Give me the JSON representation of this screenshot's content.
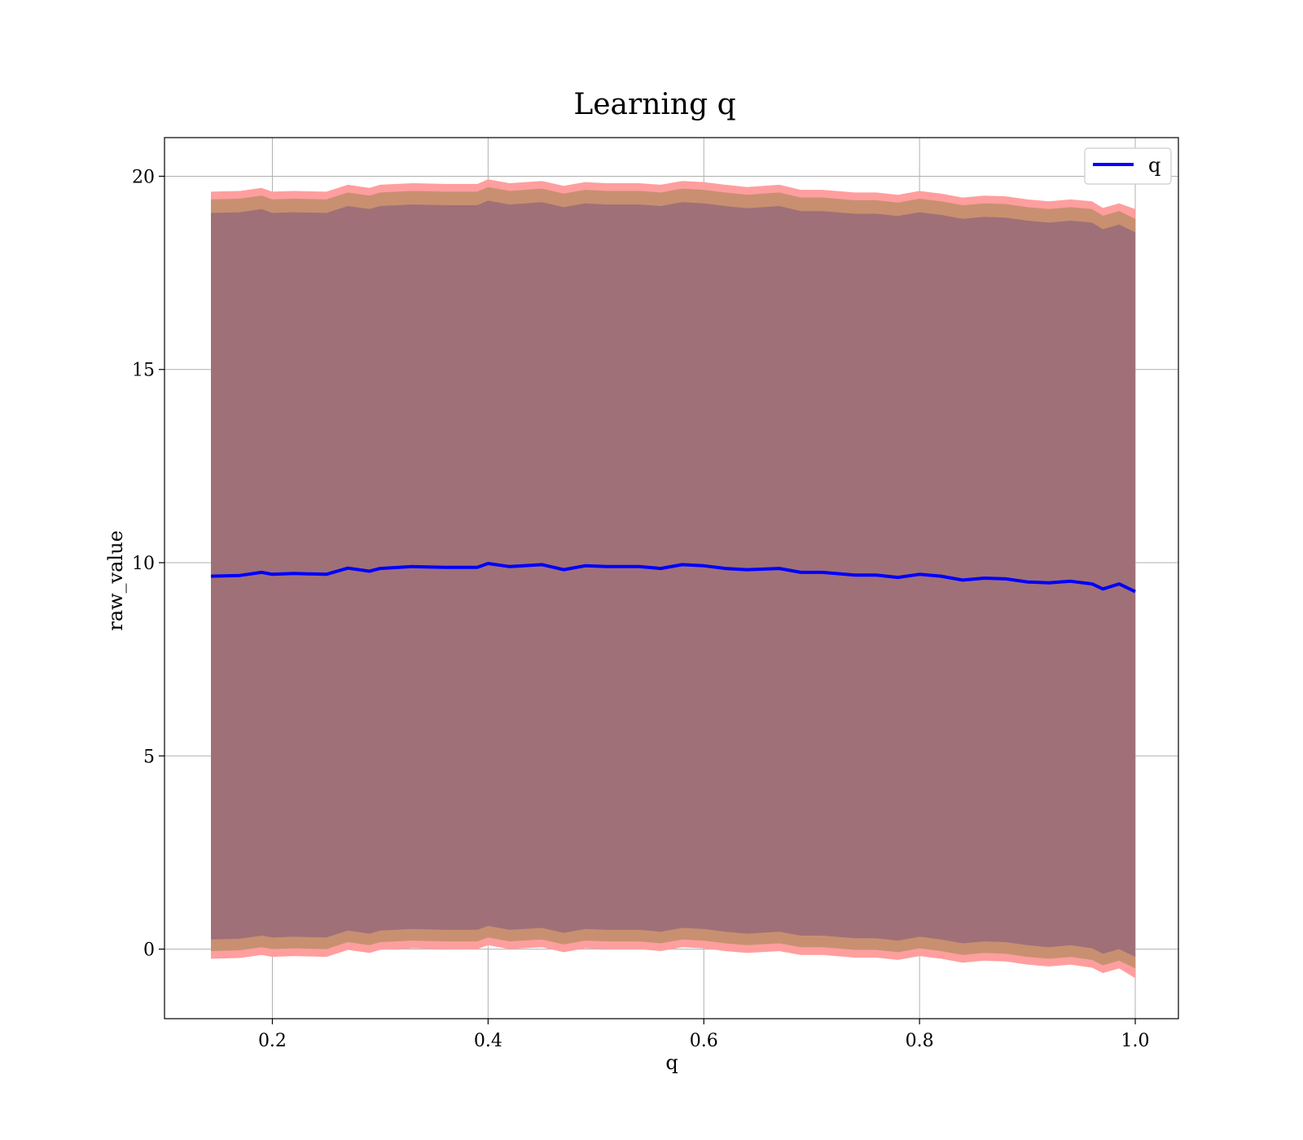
{
  "chart_data": {
    "type": "line",
    "title": "Learning q",
    "xlabel": "q",
    "ylabel": "raw_value",
    "xlim": [
      0.1,
      1.04
    ],
    "ylim": [
      -1.8,
      21.0
    ],
    "xticks": [
      0.2,
      0.4,
      0.6,
      0.8,
      1.0
    ],
    "xtick_labels": [
      "0.2",
      "0.4",
      "0.6",
      "0.8",
      "1.0"
    ],
    "yticks": [
      0,
      5,
      10,
      15,
      20
    ],
    "ytick_labels": [
      "0",
      "5",
      "10",
      "15",
      "20"
    ],
    "grid": true,
    "legend": {
      "position": "top-right",
      "entries": [
        "q"
      ]
    },
    "colors": {
      "line": "#0000ff",
      "band_outer": "#ff9e9e",
      "band_mid": "#c89070",
      "band_inner": "#a07078",
      "grid": "#b0b0b0"
    },
    "series": [
      {
        "name": "q",
        "x": [
          0.143,
          0.17,
          0.19,
          0.2,
          0.22,
          0.25,
          0.27,
          0.29,
          0.3,
          0.33,
          0.36,
          0.39,
          0.4,
          0.42,
          0.45,
          0.47,
          0.49,
          0.51,
          0.54,
          0.56,
          0.58,
          0.6,
          0.62,
          0.64,
          0.67,
          0.69,
          0.71,
          0.74,
          0.76,
          0.78,
          0.8,
          0.82,
          0.84,
          0.86,
          0.88,
          0.9,
          0.92,
          0.94,
          0.96,
          0.97,
          0.985,
          1.0
        ],
        "y": [
          9.65,
          9.67,
          9.75,
          9.7,
          9.72,
          9.7,
          9.86,
          9.78,
          9.85,
          9.9,
          9.88,
          9.88,
          9.98,
          9.9,
          9.95,
          9.82,
          9.92,
          9.9,
          9.9,
          9.85,
          9.95,
          9.92,
          9.85,
          9.82,
          9.85,
          9.75,
          9.75,
          9.68,
          9.68,
          9.62,
          9.7,
          9.65,
          9.55,
          9.6,
          9.58,
          9.5,
          9.48,
          9.52,
          9.45,
          9.32,
          9.45,
          9.25
        ],
        "band_outer_upper": [
          19.6,
          19.62,
          19.7,
          19.6,
          19.62,
          19.6,
          19.78,
          19.7,
          19.78,
          19.82,
          19.8,
          19.8,
          19.92,
          19.82,
          19.88,
          19.75,
          19.85,
          19.82,
          19.82,
          19.78,
          19.88,
          19.85,
          19.78,
          19.72,
          19.78,
          19.65,
          19.65,
          19.58,
          19.58,
          19.52,
          19.62,
          19.55,
          19.45,
          19.5,
          19.48,
          19.4,
          19.35,
          19.4,
          19.35,
          19.18,
          19.3,
          19.15
        ],
        "band_outer_lower": [
          -0.25,
          -0.23,
          -0.15,
          -0.2,
          -0.18,
          -0.2,
          -0.02,
          -0.1,
          -0.02,
          0.02,
          0.0,
          0.0,
          0.1,
          0.0,
          0.05,
          -0.08,
          0.02,
          0.0,
          0.0,
          -0.05,
          0.05,
          0.02,
          -0.05,
          -0.1,
          -0.05,
          -0.15,
          -0.15,
          -0.22,
          -0.22,
          -0.28,
          -0.18,
          -0.25,
          -0.35,
          -0.3,
          -0.32,
          -0.4,
          -0.45,
          -0.4,
          -0.48,
          -0.62,
          -0.5,
          -0.75
        ],
        "band_mid_upper": [
          19.4,
          19.42,
          19.5,
          19.4,
          19.42,
          19.4,
          19.58,
          19.5,
          19.58,
          19.62,
          19.6,
          19.6,
          19.72,
          19.62,
          19.68,
          19.55,
          19.65,
          19.62,
          19.62,
          19.58,
          19.68,
          19.65,
          19.58,
          19.52,
          19.58,
          19.45,
          19.45,
          19.38,
          19.38,
          19.32,
          19.42,
          19.35,
          19.25,
          19.3,
          19.28,
          19.2,
          19.15,
          19.2,
          19.15,
          18.98,
          19.1,
          18.9
        ],
        "band_mid_lower": [
          -0.05,
          -0.03,
          0.05,
          0.0,
          0.02,
          0.0,
          0.18,
          0.1,
          0.18,
          0.22,
          0.2,
          0.2,
          0.3,
          0.2,
          0.25,
          0.12,
          0.22,
          0.2,
          0.2,
          0.15,
          0.25,
          0.22,
          0.15,
          0.1,
          0.15,
          0.05,
          0.05,
          -0.02,
          -0.02,
          -0.08,
          0.02,
          -0.05,
          -0.15,
          -0.1,
          -0.12,
          -0.2,
          -0.25,
          -0.2,
          -0.28,
          -0.42,
          -0.3,
          -0.5
        ],
        "band_inner_upper": [
          19.05,
          19.07,
          19.15,
          19.05,
          19.07,
          19.05,
          19.23,
          19.15,
          19.23,
          19.27,
          19.25,
          19.25,
          19.37,
          19.27,
          19.33,
          19.2,
          19.3,
          19.27,
          19.27,
          19.23,
          19.33,
          19.3,
          19.23,
          19.17,
          19.23,
          19.1,
          19.1,
          19.03,
          19.03,
          18.97,
          19.07,
          19.0,
          18.9,
          18.95,
          18.93,
          18.85,
          18.8,
          18.85,
          18.8,
          18.63,
          18.75,
          18.55
        ],
        "band_inner_lower": [
          0.25,
          0.27,
          0.35,
          0.3,
          0.32,
          0.3,
          0.48,
          0.4,
          0.48,
          0.52,
          0.5,
          0.5,
          0.6,
          0.5,
          0.55,
          0.42,
          0.52,
          0.5,
          0.5,
          0.45,
          0.55,
          0.52,
          0.45,
          0.4,
          0.45,
          0.35,
          0.35,
          0.28,
          0.28,
          0.22,
          0.32,
          0.25,
          0.15,
          0.2,
          0.18,
          0.1,
          0.05,
          0.1,
          0.02,
          -0.12,
          0.0,
          -0.2
        ]
      }
    ]
  }
}
